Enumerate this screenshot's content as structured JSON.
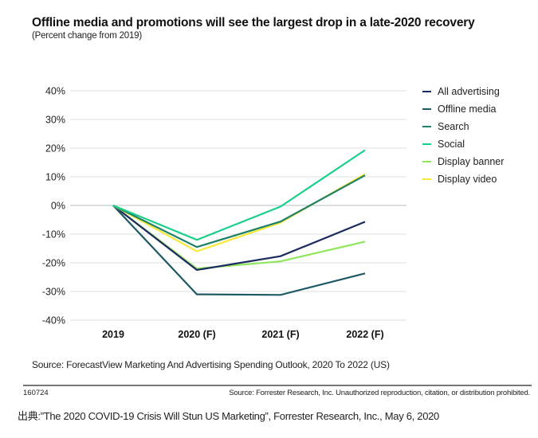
{
  "chart_data": {
    "type": "line",
    "title": "Offline media and promotions will see the largest drop in a late-2020 recovery",
    "subtitle": "(Percent change from 2019)",
    "xlabel": "",
    "ylabel": "",
    "categories": [
      "2019",
      "2020 (F)",
      "2021 (F)",
      "2022 (F)"
    ],
    "ylim": [
      -40,
      40
    ],
    "yticks": [
      40,
      30,
      20,
      10,
      0,
      -10,
      -20,
      -30,
      -40
    ],
    "ytick_labels": [
      "40%",
      "30%",
      "20%",
      "10%",
      "0%",
      "-10%",
      "-20%",
      "-30%",
      "-40%"
    ],
    "grid": true,
    "legend_position": "right",
    "series": [
      {
        "name": "All advertising",
        "color": "#1b2a5e",
        "values": [
          0,
          -22.5,
          -17.7,
          -5.7
        ]
      },
      {
        "name": "Offline media",
        "color": "#1d5a63",
        "values": [
          0,
          -31,
          -31.2,
          -23.7
        ]
      },
      {
        "name": "Search",
        "color": "#1f8068",
        "values": [
          0,
          -14.5,
          -5.6,
          10.5
        ]
      },
      {
        "name": "Social",
        "color": "#1ccf8a",
        "values": [
          0,
          -12,
          -0.4,
          19.3
        ]
      },
      {
        "name": "Display banner",
        "color": "#8fe65c",
        "values": [
          0,
          -22,
          -19.5,
          -12.6
        ]
      },
      {
        "name": "Display video",
        "color": "#f6e93c",
        "values": [
          0,
          -16,
          -6,
          11
        ]
      }
    ]
  },
  "footer": {
    "source": "Source: ForecastView Marketing And Advertising Spending Outlook, 2020 To 2022 (US)",
    "code": "160724",
    "rights": "Source: Forrester Research, Inc. Unauthorized reproduction, citation, or distribution prohibited.",
    "citation": "出典:”The 2020 COVID-19 Crisis Will Stun US Marketing”, Forrester Research, Inc., May 6, 2020"
  }
}
